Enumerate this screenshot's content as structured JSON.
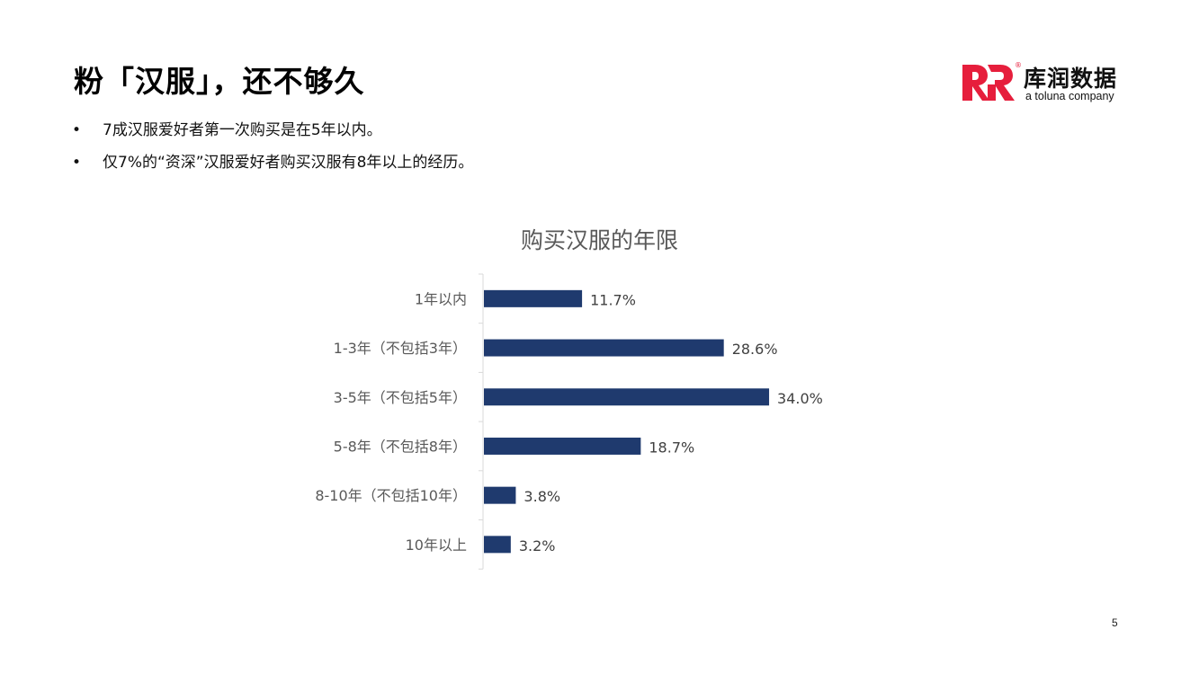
{
  "slide": {
    "title": "粉「汉服」，还不够久",
    "bullets": [
      "7成汉服爱好者第一次购买是在5年以内。",
      "仅7%的“资深”汉服爱好者购买汉服有8年以上的经历。"
    ],
    "bullet_symbol": "•",
    "page_number": "5"
  },
  "logo": {
    "name_cn": "库润数据",
    "tagline": "a toluna company",
    "registered_mark": "®",
    "brand_color": "#E61E3C"
  },
  "chart_data": {
    "type": "bar",
    "orientation": "horizontal",
    "title": "购买汉服的年限",
    "categories": [
      "1年以内",
      "1-3年（不包括3年）",
      "3-5年（不包括5年）",
      "5-8年（不包括8年）",
      "8-10年（不包括10年）",
      "10年以上"
    ],
    "values": [
      11.7,
      28.6,
      34.0,
      18.7,
      3.8,
      3.2
    ],
    "value_labels": [
      "11.7%",
      "28.6%",
      "34.0%",
      "18.7%",
      "3.8%",
      "3.2%"
    ],
    "unit": "%",
    "bar_color": "#1F3A6E",
    "xlim": [
      0,
      40
    ],
    "grid": false,
    "legend": "none"
  }
}
